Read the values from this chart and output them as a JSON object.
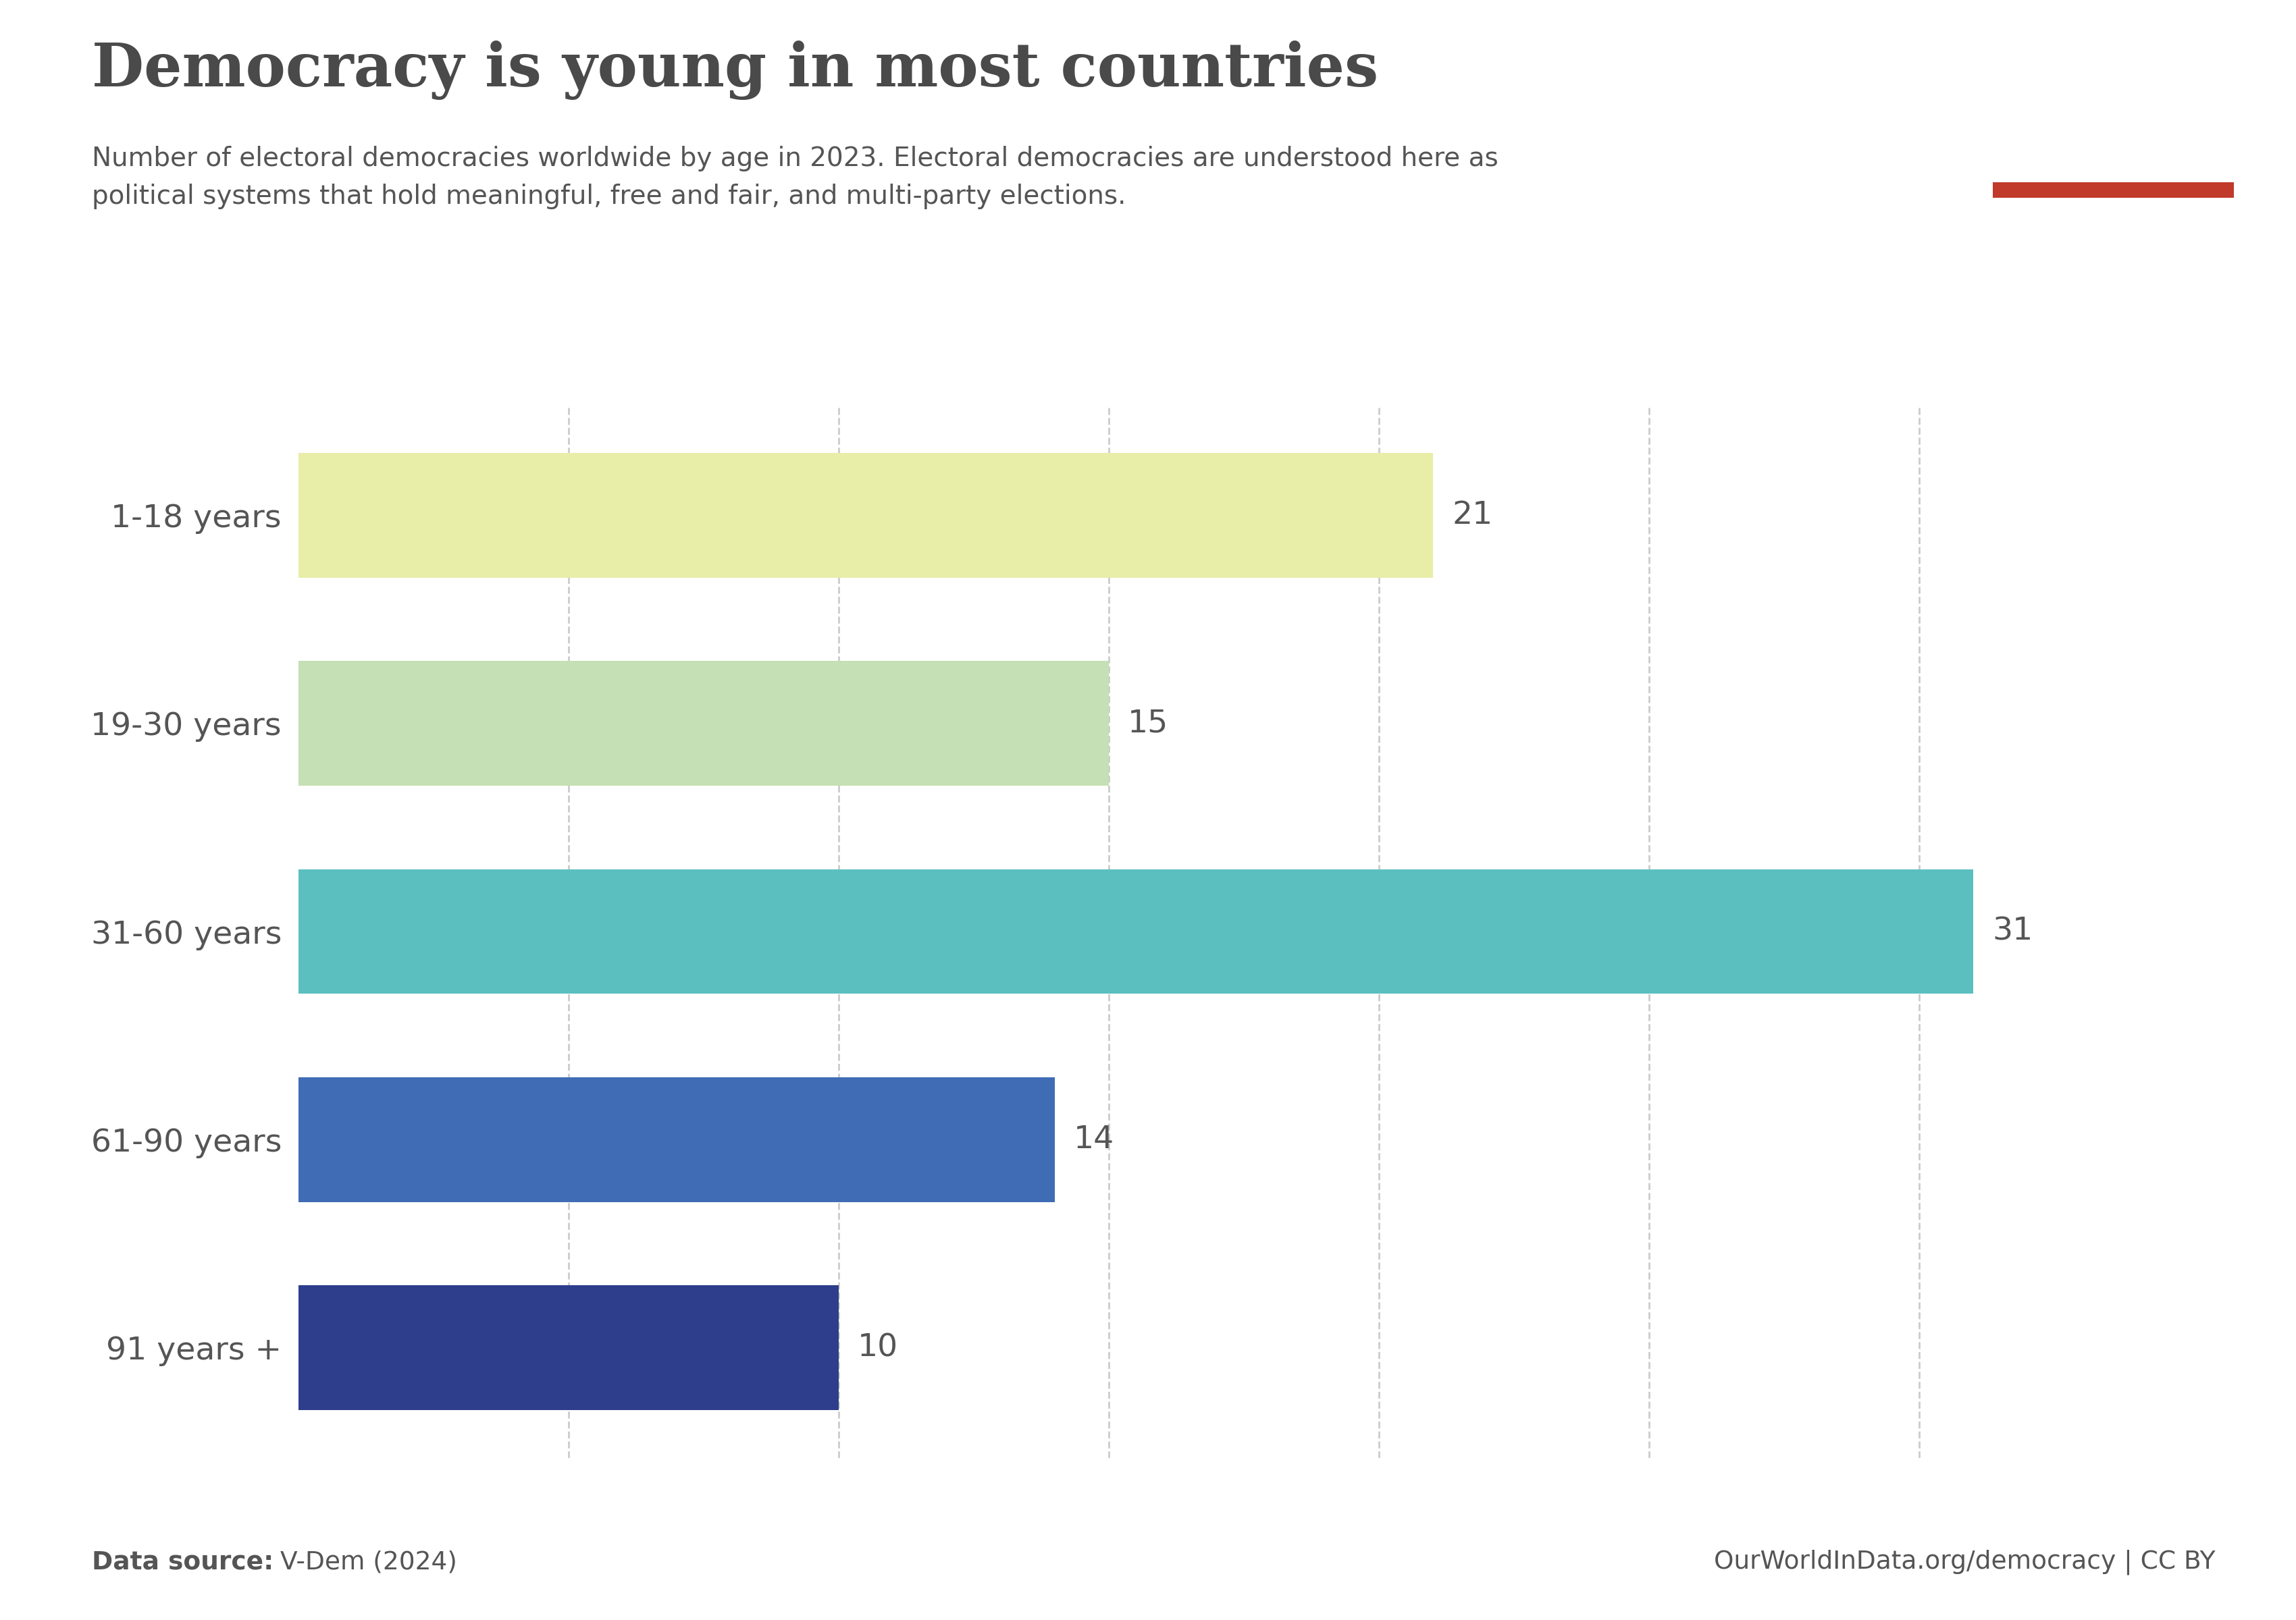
{
  "title": "Democracy is young in most countries",
  "subtitle": "Number of electoral democracies worldwide by age in 2023. Electoral democracies are understood here as\npolitical systems that hold meaningful, free and fair, and multi-party elections.",
  "categories": [
    "1-18 years",
    "19-30 years",
    "31-60 years",
    "61-90 years",
    "91 years +"
  ],
  "values": [
    21,
    15,
    31,
    14,
    10
  ],
  "bar_colors": [
    "#e8eda8",
    "#c5e0b4",
    "#5bbfbf",
    "#3f6cb5",
    "#2e3e8c"
  ],
  "xlim": [
    0,
    34
  ],
  "x_gridlines": [
    5,
    10,
    15,
    20,
    25,
    30
  ],
  "data_source_label": "Data source:",
  "data_source": "V-Dem (2024)",
  "url": "OurWorldInData.org/democracy | CC BY",
  "owid_logo_bg": "#0d2547",
  "owid_logo_stripe": "#c0392b",
  "background_color": "#ffffff",
  "title_color": "#4a4a4a",
  "label_color": "#555555",
  "grid_color": "#cccccc",
  "value_label_color": "#555555",
  "bar_height": 0.6
}
